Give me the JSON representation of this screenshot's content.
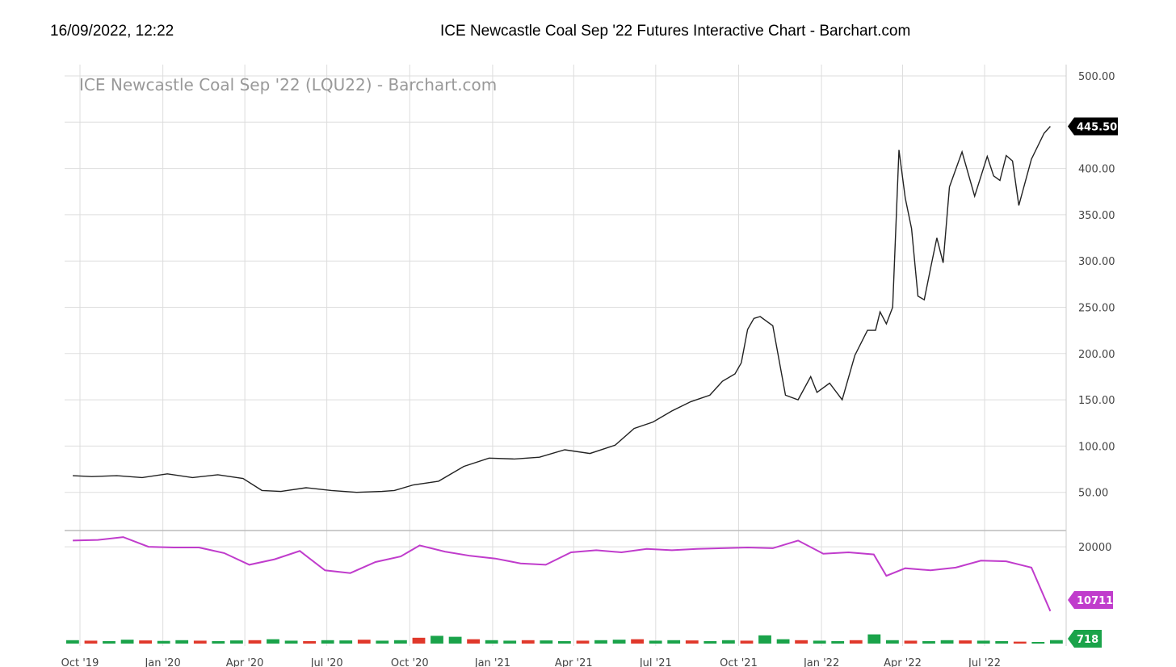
{
  "header": {
    "datetime": "16/09/2022, 12:22",
    "title": "ICE Newcastle Coal Sep '22 Futures Interactive Chart - Barchart.com"
  },
  "chart_data": [
    {
      "type": "line",
      "title": "ICE Newcastle Coal Sep '22 (LQU22) - Barchart.com",
      "x_tick_labels": [
        "Oct '19",
        "Jan '20",
        "Apr '20",
        "Jul '20",
        "Oct '20",
        "Jan '21",
        "Apr '21",
        "Jul '21",
        "Oct '21",
        "Jan '22",
        "Apr '22",
        "Jul '22"
      ],
      "y_tick_labels": [
        "500.00",
        "400.00",
        "350.00",
        "300.00",
        "250.00",
        "200.00",
        "150.00",
        "100.00",
        "50.00"
      ],
      "ylim": [
        0,
        500
      ],
      "grid": true,
      "last_value_label": "445.50",
      "color": "#222222",
      "x": [
        "2019-09-23",
        "2019-10-14",
        "2019-11-11",
        "2019-12-09",
        "2020-01-06",
        "2020-02-03",
        "2020-03-02",
        "2020-03-30",
        "2020-04-20",
        "2020-05-11",
        "2020-06-08",
        "2020-07-06",
        "2020-08-03",
        "2020-08-31",
        "2020-09-14",
        "2020-10-05",
        "2020-11-02",
        "2020-11-30",
        "2020-12-28",
        "2021-01-25",
        "2021-02-22",
        "2021-03-22",
        "2021-04-19",
        "2021-05-17",
        "2021-06-07",
        "2021-06-28",
        "2021-07-19",
        "2021-08-09",
        "2021-08-30",
        "2021-09-13",
        "2021-09-27",
        "2021-10-04",
        "2021-10-11",
        "2021-10-18",
        "2021-10-25",
        "2021-11-08",
        "2021-11-22",
        "2021-12-06",
        "2021-12-20",
        "2021-12-27",
        "2022-01-10",
        "2022-01-24",
        "2022-02-07",
        "2022-02-21",
        "2022-03-02",
        "2022-03-07",
        "2022-03-14",
        "2022-03-21",
        "2022-03-28",
        "2022-04-04",
        "2022-04-11",
        "2022-04-18",
        "2022-04-25",
        "2022-05-02",
        "2022-05-09",
        "2022-05-16",
        "2022-05-23",
        "2022-06-06",
        "2022-06-20",
        "2022-07-04",
        "2022-07-11",
        "2022-07-18",
        "2022-07-25",
        "2022-08-01",
        "2022-08-08",
        "2022-08-22",
        "2022-09-05",
        "2022-09-12"
      ],
      "y": [
        68,
        67,
        68,
        66,
        70,
        66,
        69,
        65,
        52,
        51,
        55,
        52,
        50,
        51,
        52,
        58,
        62,
        78,
        87,
        86,
        88,
        96,
        92,
        101,
        119,
        126,
        138,
        148,
        155,
        170,
        178,
        190,
        226,
        238,
        240,
        230,
        155,
        150,
        175,
        158,
        168,
        150,
        198,
        225,
        225,
        245,
        232,
        250,
        420,
        368,
        335,
        262,
        258,
        292,
        325,
        298,
        380,
        418,
        370,
        413,
        392,
        387,
        414,
        408,
        360,
        410,
        438,
        445.5
      ]
    },
    {
      "type": "line",
      "y_tick_labels": [
        "20000"
      ],
      "last_value_label": "10711",
      "color": "#c03ccc",
      "x": [
        "2019-09-23",
        "2019-10-21",
        "2019-11-18",
        "2019-12-16",
        "2020-01-13",
        "2020-02-10",
        "2020-03-09",
        "2020-04-06",
        "2020-05-04",
        "2020-06-01",
        "2020-06-29",
        "2020-07-27",
        "2020-08-24",
        "2020-09-21",
        "2020-10-12",
        "2020-11-09",
        "2020-12-07",
        "2021-01-04",
        "2021-02-01",
        "2021-03-01",
        "2021-03-29",
        "2021-04-26",
        "2021-05-24",
        "2021-06-21",
        "2021-07-19",
        "2021-08-16",
        "2021-09-13",
        "2021-10-11",
        "2021-11-08",
        "2021-12-06",
        "2022-01-03",
        "2022-01-31",
        "2022-02-28",
        "2022-03-14",
        "2022-04-04",
        "2022-05-02",
        "2022-05-30",
        "2022-06-27",
        "2022-07-25",
        "2022-08-22",
        "2022-09-12"
      ],
      "y": [
        20900,
        21000,
        21400,
        20000,
        19900,
        19900,
        19100,
        17400,
        18200,
        19400,
        16600,
        16200,
        17800,
        18600,
        20200,
        19300,
        18700,
        18300,
        17600,
        17400,
        19200,
        19500,
        19200,
        19700,
        19500,
        19700,
        19800,
        19900,
        19800,
        20900,
        19000,
        19200,
        18900,
        15800,
        16900,
        16600,
        17000,
        18000,
        17900,
        17000,
        10711
      ],
      "ylim": [
        8000,
        22000
      ]
    },
    {
      "type": "bar",
      "last_value_label": "718",
      "colors": {
        "up": "#1aa34a",
        "down": "#e0382b"
      },
      "values": [
        700,
        600,
        500,
        800,
        650,
        550,
        700,
        600,
        500,
        650,
        700,
        900,
        600,
        500,
        700,
        650,
        800,
        600,
        700,
        1200,
        1600,
        1400,
        900,
        700,
        600,
        700,
        650,
        500,
        600,
        700,
        800,
        900,
        600,
        700,
        650,
        500,
        700,
        600,
        1700,
        900,
        700,
        600,
        500,
        700,
        1900,
        700,
        600,
        500,
        700,
        650,
        600,
        500,
        400,
        300,
        718
      ],
      "ylim": [
        0,
        2000
      ]
    }
  ],
  "colors": {
    "grid": "#dddddd",
    "price_tag_bg": "#000000",
    "oi_tag_bg": "#c03ccc",
    "vol_tag_bg": "#1aa34a"
  }
}
